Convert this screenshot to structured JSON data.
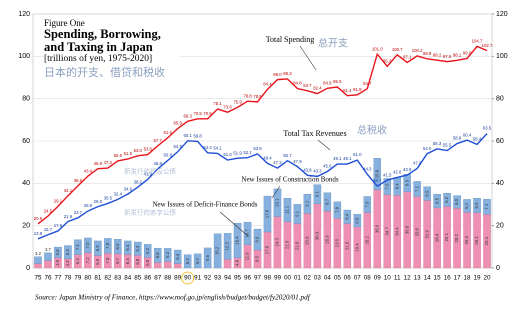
{
  "chart_data": {
    "type": "combo",
    "figure_label": "Figure One",
    "title": "Spending, Borrowing, and Taxing in Japan",
    "subtitle": "[trillions of yen, 1975-2020]",
    "subtitle_zh": "日本的开支、借贷和税收",
    "source": "Source: Japan Ministry of Finance, https://www.mof.go.jp/english/budget/budget/fy2020/01.pdf",
    "categories": [
      "75",
      "76",
      "77",
      "78",
      "79",
      "80",
      "81",
      "82",
      "83",
      "84",
      "85",
      "86",
      "87",
      "88",
      "89",
      "90",
      "91",
      "92",
      "93",
      "94",
      "95",
      "96",
      "97",
      "98",
      "99",
      "00",
      "01",
      "02",
      "03",
      "04",
      "05",
      "06",
      "07",
      "08",
      "09",
      "10",
      "11",
      "12",
      "13",
      "14",
      "15",
      "16",
      "17",
      "18",
      "19",
      "20"
    ],
    "ylim": [
      0,
      120
    ],
    "yticks": [
      0,
      20,
      40,
      60,
      80,
      100,
      120
    ],
    "y2lim": [
      0,
      120
    ],
    "y2ticks": [
      0,
      20,
      40,
      60,
      80,
      100,
      120
    ],
    "grid": true,
    "series": [
      {
        "name": "Total Spending",
        "name_zh": "总开支",
        "kind": "line",
        "color": "#e8141b",
        "values": [
          20.9,
          24.5,
          29.1,
          34.1,
          38.8,
          43.4,
          46.9,
          47.2,
          50.6,
          51.5,
          53.0,
          53.6,
          57.7,
          61.5,
          65.9,
          69.3,
          70.5,
          70.5,
          75.1,
          73.6,
          75.9,
          78.8,
          78.5,
          84.4,
          89.0,
          89.3,
          84.8,
          83.7,
          82.4,
          84.9,
          85.5,
          81.4,
          81.8,
          84.7,
          101.0,
          95.3,
          100.7,
          97.1,
          100.2,
          98.8,
          98.2,
          97.5,
          98.1,
          99.0,
          104.7,
          102.7
        ],
        "value_labels": [
          "20.9",
          "24.5",
          "29.1",
          "34.1",
          "38.8",
          "43.4",
          "46.9",
          "47.2",
          "50.6",
          "51.5",
          "53.0",
          "53.6",
          "57.7",
          "61.5",
          "65.9",
          "69.3",
          "70.5",
          "70.5",
          "75.1",
          "73.6",
          "75.9",
          "78.8",
          "78.5",
          "84.4",
          "89.0",
          "89.3",
          "84.8",
          "83.7",
          "82.4",
          "84.9",
          "85.5",
          "81.4",
          "81.8",
          "84.7",
          "101.0",
          "95.3",
          "100.7",
          "97.1",
          "100.2",
          "98.8",
          "98.2",
          "97.5",
          "98.1",
          "99.0",
          "104.7",
          "102.7"
        ]
      },
      {
        "name": "Total Tax Revenues",
        "name_zh": "总税收",
        "kind": "line",
        "color": "#1f4fd6",
        "values": [
          13.8,
          15.7,
          17.5,
          21.9,
          23.7,
          26.9,
          29.0,
          30.5,
          32.4,
          34.9,
          38.2,
          41.9,
          46.8,
          50.8,
          54.9,
          60.1,
          59.8,
          54.4,
          54.1,
          51.0,
          51.9,
          52.1,
          53.9,
          49.4,
          47.2,
          50.7,
          47.9,
          43.8,
          43.3,
          45.6,
          49.1,
          49.1,
          51.0,
          44.3,
          38.7,
          41.5,
          42.8,
          43.9,
          47.0,
          54.0,
          56.3,
          55.5,
          58.8,
          60.4,
          58.4,
          63.5
        ],
        "value_labels": [
          "13.8",
          "15.7",
          "17.5",
          "21.9",
          "23.7",
          "26.9",
          "29.0",
          "30.5",
          "32.4",
          "34.9",
          "38.2",
          "41.9",
          "46.8",
          "50.8",
          "54.9",
          "60.1",
          "59.8",
          "54.4",
          "54.1",
          "51.0",
          "51.9",
          "52.1",
          "53.9",
          "49.4",
          "47.2",
          "50.7",
          "47.9",
          "43.8",
          "43.3",
          "45.6",
          "49.1",
          "49.1",
          "51.0",
          "44.3",
          "38.7",
          "41.5",
          "42.8",
          "43.9",
          "47.0",
          "54.0",
          "56.3",
          "55.5",
          "58.8",
          "60.4",
          "58.4",
          "63.5"
        ]
      },
      {
        "name": "New Issues of Deficit-Finance Bonds",
        "name_zh": "新发行的赤字公债",
        "kind": "bar",
        "color": "#ee8fb4",
        "values": [
          2.1,
          3.5,
          4.9,
          4.3,
          6.3,
          7.2,
          5.9,
          7.0,
          6.7,
          6.4,
          6.0,
          5.0,
          2.6,
          3.1,
          2.1,
          0,
          0,
          0,
          0,
          4.1,
          4.8,
          11.0,
          8.5,
          17.0,
          24.3,
          21.9,
          21.0,
          25.8,
          30.3,
          26.9,
          23.5,
          21.0,
          19.4,
          26.2,
          36.9,
          34.7,
          34.4,
          36.0,
          33.8,
          31.9,
          28.4,
          29.1,
          28.2,
          26.3,
          26.1,
          25.4
        ],
        "value_labels": [
          "2.1",
          "3.5",
          "4.9",
          "4.3",
          "6.3",
          "7.2",
          "5.9",
          "7.0",
          "6.7",
          "6.4",
          "6.0",
          "5.0",
          "2.6",
          "3.1",
          "2.1",
          null,
          null,
          null,
          null,
          "4.1",
          "4.8",
          "11.0",
          "8.5",
          "17.0",
          "24.3",
          "21.9",
          "21.0",
          "25.8",
          "30.3",
          "26.9",
          "23.5",
          "21.0",
          "19.4",
          "26.2",
          "36.9",
          "34.7",
          "34.4",
          "36.0",
          "33.8",
          "31.9",
          "28.4",
          "29.1",
          "28.2",
          "26.3",
          "26.1",
          "25.4"
        ]
      },
      {
        "name": "New Issues of Construction Bonds",
        "name_zh": "新发行的建设公债",
        "kind": "bar",
        "color": "#86b0de",
        "values": [
          3.2,
          3.7,
          5.0,
          6.3,
          7.1,
          7.0,
          6.9,
          7.0,
          6.9,
          6.4,
          6.3,
          6.2,
          6.8,
          6.2,
          6.4,
          6.3,
          6.7,
          9.5,
          16.2,
          12.3,
          16.4,
          10.7,
          9.9,
          17.0,
          13.1,
          11.1,
          9.1,
          9.1,
          9.1,
          8.7,
          7.8,
          6.4,
          6.0,
          7.6,
          15.0,
          7.6,
          8.4,
          8.3,
          7.1,
          6.5,
          6.5,
          6.2,
          6.0,
          6.1,
          6.9,
          7.1
        ],
        "value_labels": [
          "3.2",
          "3.7",
          "5.0",
          "6.3",
          "7.1",
          "7.0",
          "6.9",
          "7.0",
          "6.9",
          "6.4",
          "6.3",
          "6.2",
          "6.8",
          "6.2",
          "6.4",
          "6.3",
          "6.7",
          "9.5",
          "16.2",
          "12.3",
          "16.4",
          "10.7",
          "9.9",
          "17.0",
          "13.1",
          "11.1",
          "9.1",
          "9.1",
          "9.1",
          "8.7",
          "7.8",
          "6.4",
          "6.0",
          "7.6",
          "15.0",
          "7.6",
          "8.4",
          "8.3",
          "7.1",
          "6.5",
          "6.5",
          "6.2",
          "6.0",
          "6.1",
          "6.9",
          "7.1"
        ]
      }
    ]
  }
}
